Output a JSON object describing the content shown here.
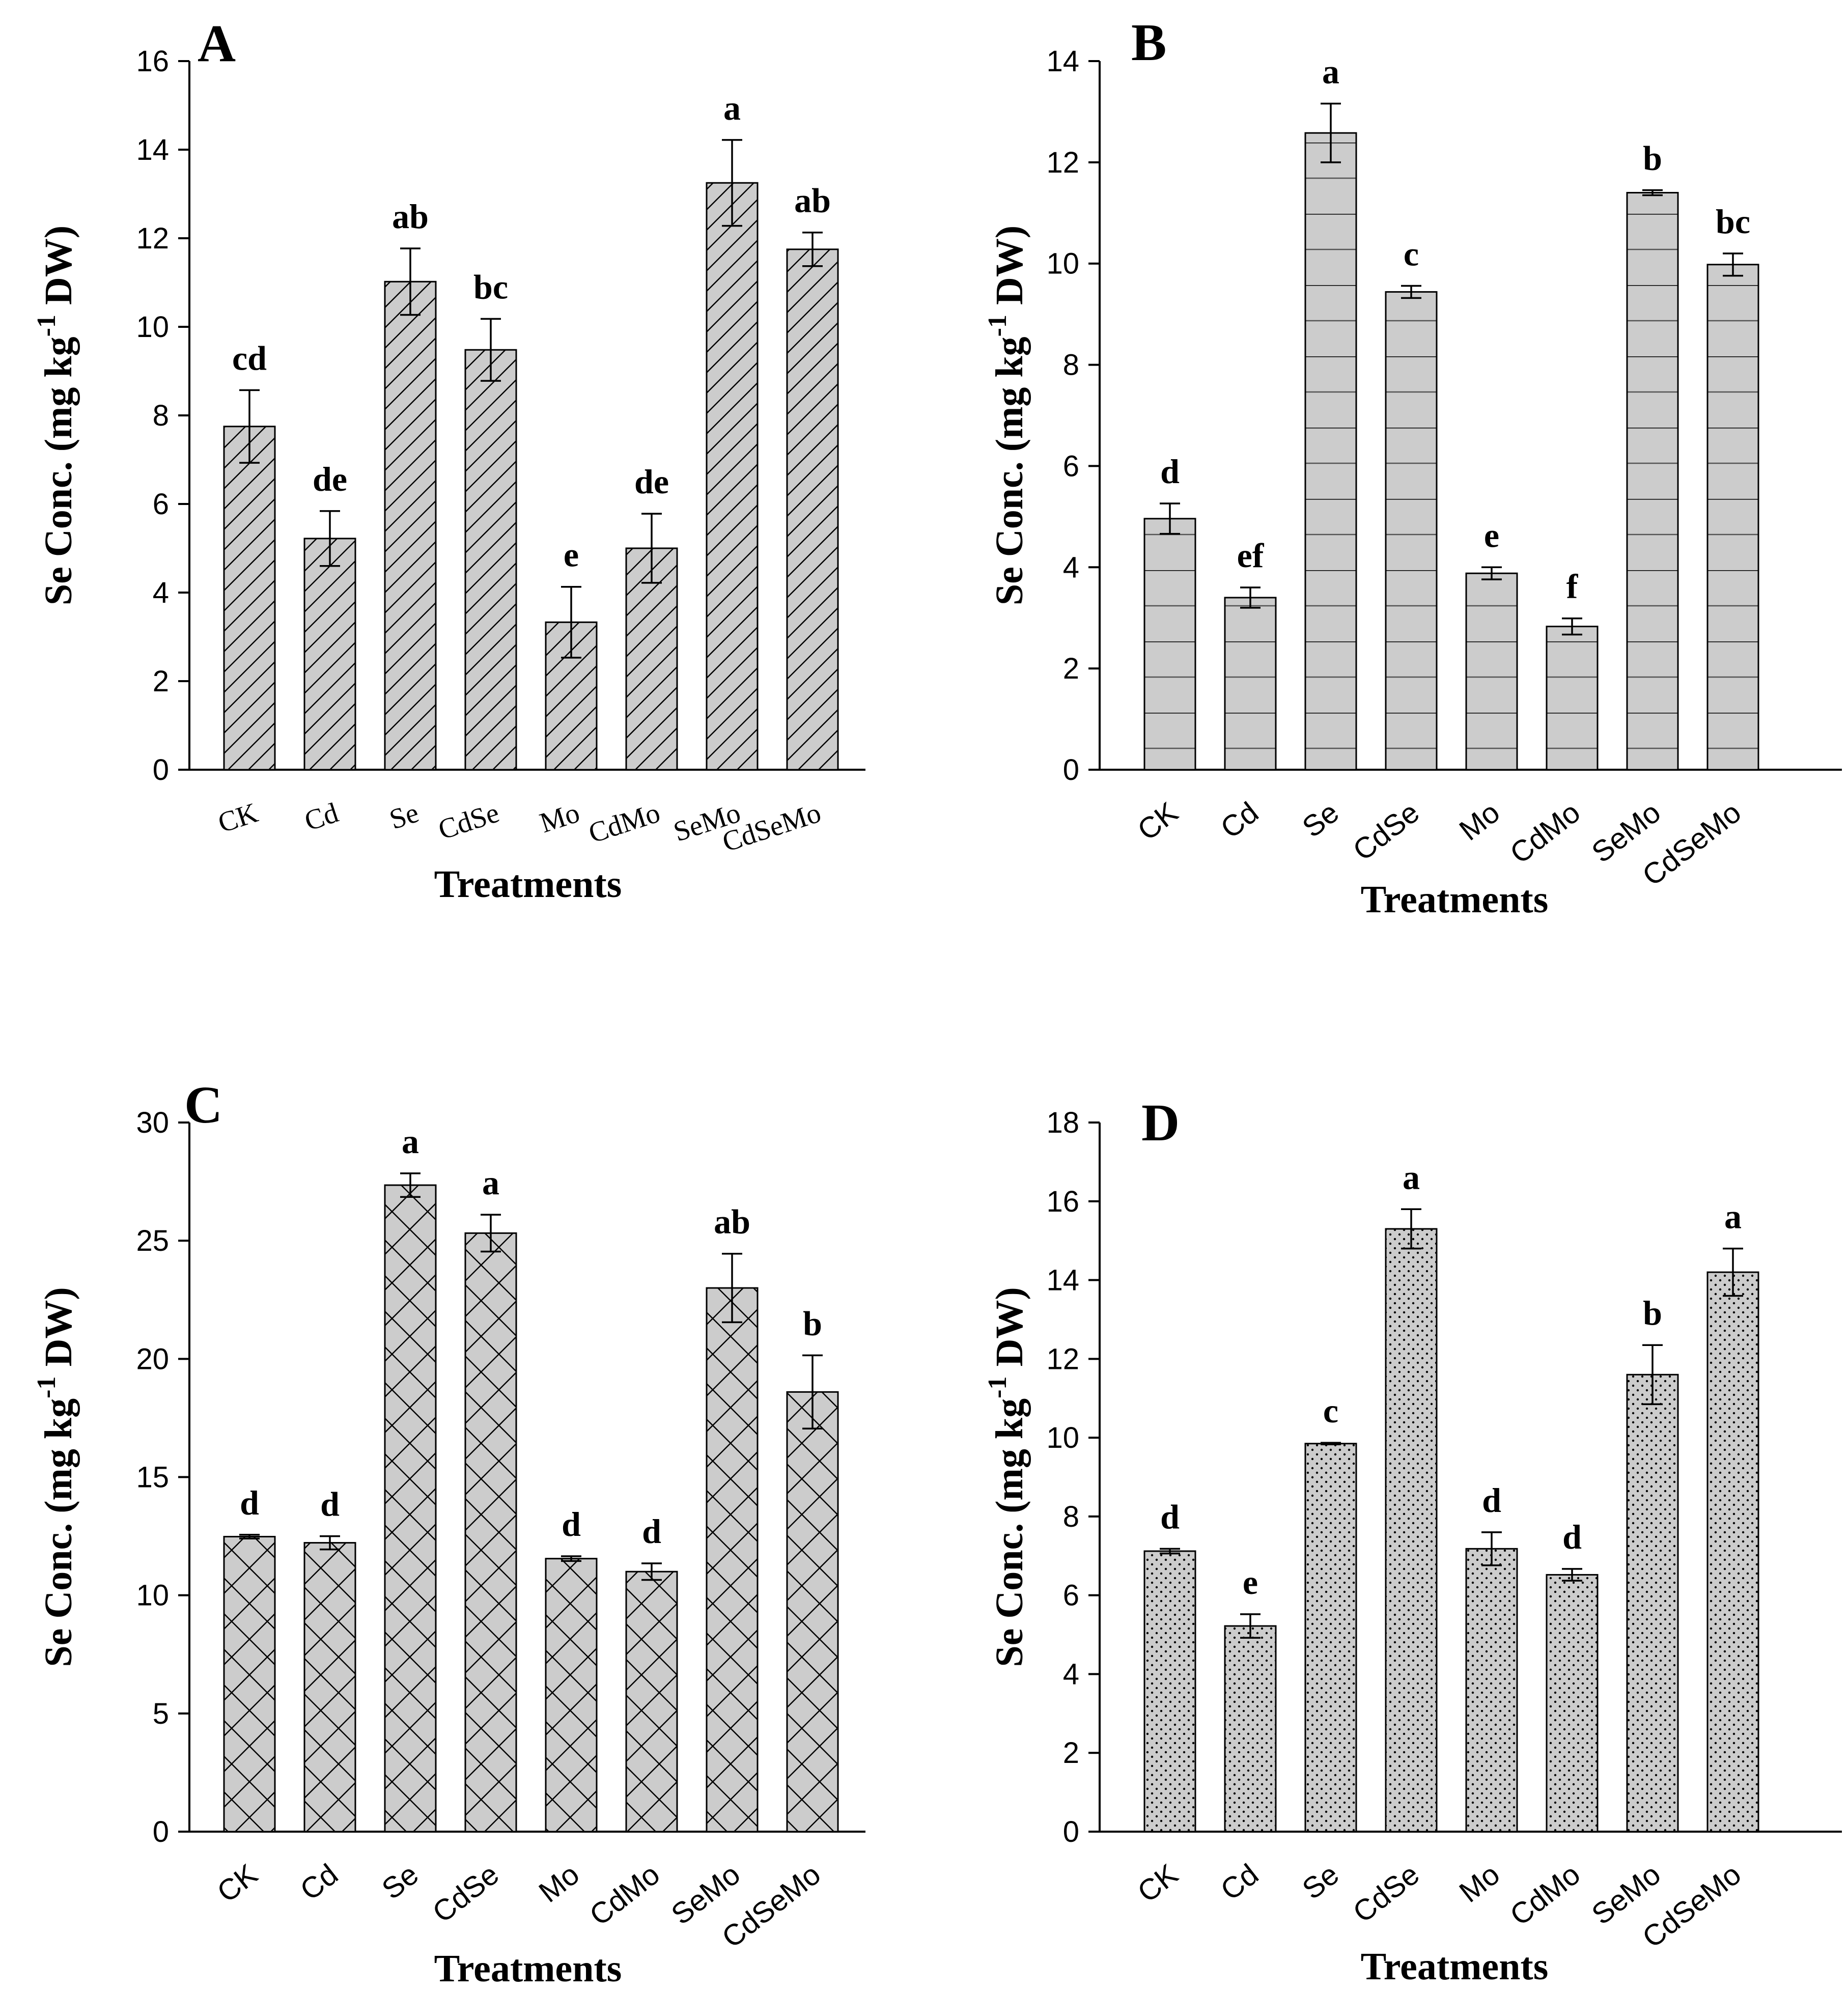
{
  "chart_data": [
    {
      "panel": "A",
      "type": "bar",
      "pattern": "diagonal",
      "categories": [
        "CK",
        "Cd",
        "Se",
        "CdSe",
        "Mo",
        "CdMo",
        "SeMo",
        "CdSeMo"
      ],
      "values": [
        7.75,
        5.22,
        11.02,
        9.48,
        3.33,
        5.0,
        13.25,
        11.75
      ],
      "errors": [
        0.82,
        0.62,
        0.75,
        0.7,
        0.8,
        0.78,
        0.97,
        0.38
      ],
      "significance": [
        "cd",
        "de",
        "ab",
        "bc",
        "e",
        "de",
        "a",
        "ab"
      ],
      "xlabel": "Treatments",
      "ylabel": "Se Conc. (mg kg-1 DW)",
      "ylim": [
        0,
        16
      ],
      "yticks": [
        0,
        2,
        4,
        6,
        8,
        10,
        12,
        14,
        16
      ],
      "bar_color": "#cccccc"
    },
    {
      "panel": "B",
      "type": "bar",
      "pattern": "horizontal",
      "categories": [
        "CK",
        "Cd",
        "Se",
        "CdSe",
        "Mo",
        "CdMo",
        "SeMo",
        "CdSeMo"
      ],
      "values": [
        4.96,
        3.4,
        12.58,
        9.44,
        3.88,
        2.83,
        11.4,
        9.98
      ],
      "errors": [
        0.3,
        0.2,
        0.58,
        0.12,
        0.12,
        0.16,
        0.05,
        0.22
      ],
      "significance": [
        "d",
        "ef",
        "a",
        "c",
        "e",
        "f",
        "b",
        "bc"
      ],
      "xlabel": "Treatments",
      "ylabel": "Se Conc. (mg kg-1 DW)",
      "ylim": [
        0,
        14
      ],
      "yticks": [
        0,
        2,
        4,
        6,
        8,
        10,
        12,
        14
      ],
      "bar_color": "#cccccc"
    },
    {
      "panel": "C",
      "type": "bar",
      "pattern": "crosshatch",
      "categories": [
        "CK",
        "Cd",
        "Se",
        "CdSe",
        "Mo",
        "CdMo",
        "SeMo",
        "CdSeMo"
      ],
      "values": [
        12.48,
        12.22,
        27.35,
        25.32,
        11.55,
        11.0,
        23.0,
        18.6
      ],
      "errors": [
        0.08,
        0.28,
        0.5,
        0.78,
        0.1,
        0.35,
        1.45,
        1.55
      ],
      "significance": [
        "d",
        "d",
        "a",
        "a",
        "d",
        "d",
        "ab",
        "b"
      ],
      "xlabel": "Treatments",
      "ylabel": "Se Conc. (mg kg-1 DW)",
      "ylim": [
        0,
        30
      ],
      "yticks": [
        0,
        5,
        10,
        15,
        20,
        25,
        30
      ],
      "bar_color": "#cccccc"
    },
    {
      "panel": "D",
      "type": "bar",
      "pattern": "dots",
      "categories": [
        "CK",
        "Cd",
        "Se",
        "CdSe",
        "Mo",
        "CdMo",
        "SeMo",
        "CdSeMo"
      ],
      "values": [
        7.12,
        5.22,
        9.85,
        15.3,
        7.18,
        6.52,
        11.6,
        14.2
      ],
      "errors": [
        0.06,
        0.3,
        0.02,
        0.5,
        0.42,
        0.15,
        0.75,
        0.6
      ],
      "significance": [
        "d",
        "e",
        "c",
        "a",
        "d",
        "d",
        "b",
        "a"
      ],
      "xlabel": "Treatments",
      "ylabel": "Se Conc. (mg kg-1 DW)",
      "ylim": [
        0,
        18
      ],
      "yticks": [
        0,
        2,
        4,
        6,
        8,
        10,
        12,
        14,
        16,
        18
      ],
      "bar_color": "#cccccc"
    }
  ]
}
